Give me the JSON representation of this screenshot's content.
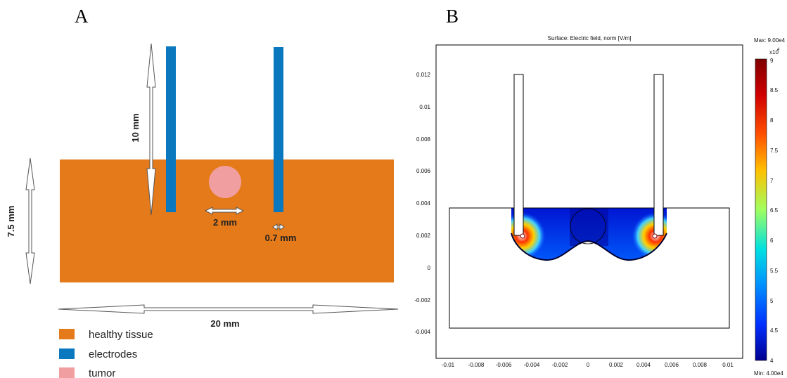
{
  "panel_a": {
    "label": "A",
    "dimensions": {
      "height_10": "10 mm",
      "height_7_5": "7.5 mm",
      "tumor_diameter": "2 mm",
      "electrode_width": "0.7 mm",
      "width_20": "20 mm"
    },
    "legend": [
      {
        "label": "healthy tissue",
        "color": "#E47A1A"
      },
      {
        "label": "electrodes",
        "color": "#0A78BF"
      },
      {
        "label": "tumor",
        "color": "#F19EA0"
      }
    ],
    "colors": {
      "tissue": "#E47A1A",
      "electrode": "#0A78BF",
      "tumor": "#F19EA0"
    }
  },
  "panel_b": {
    "label": "B",
    "title": "Surface: Electric field, norm [V/m]",
    "max_label": "Max: 9.00e4",
    "min_label": "Min: 4.00e4",
    "colorbar_exponent": "x10",
    "colorbar_exponent_power": "4",
    "colorbar_ticks": [
      "9",
      "8.5",
      "8",
      "7.5",
      "7",
      "6.5",
      "6",
      "5.5",
      "5",
      "4.5",
      "4"
    ],
    "y_ticks": [
      "0.012",
      "0.01",
      "0.008",
      "0.006",
      "0.004",
      "0.002",
      "0",
      "-0.002",
      "-0.004"
    ],
    "x_ticks": [
      "-0.01",
      "-0.008",
      "-0.006",
      "-0.004",
      "-0.002",
      "0",
      "0.002",
      "0.004",
      "0.006",
      "0.008",
      "0.01"
    ]
  }
}
